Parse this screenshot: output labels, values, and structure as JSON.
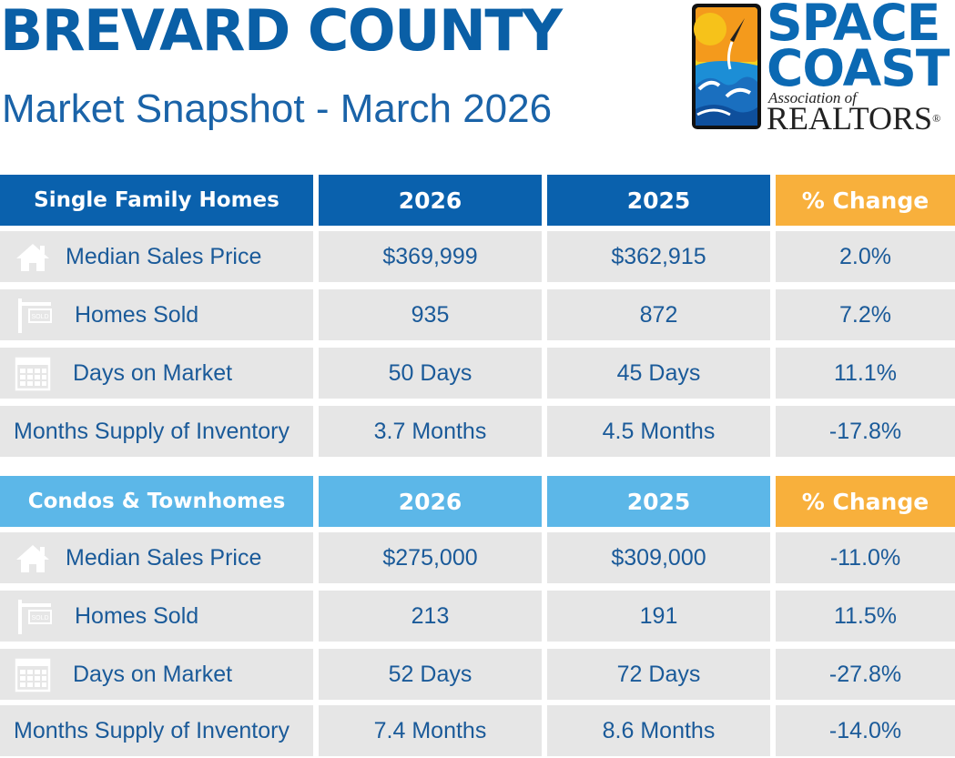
{
  "header": {
    "title": "BREVARD COUNTY",
    "subtitle": "Market Snapshot - March 2026"
  },
  "logo": {
    "line1": "SPACE",
    "line2": "COAST",
    "line3": "Association of",
    "line4": "REALTORS",
    "registered": "®"
  },
  "colors": {
    "brand_blue": "#0a61ad",
    "light_blue": "#5cb7e8",
    "change_orange": "#f8b03c",
    "row_gray": "#e6e6e6",
    "text_blue": "#1a5a99"
  },
  "single_family": {
    "header": [
      "Single Family Homes",
      "2026",
      "2025",
      "% Change"
    ],
    "rows": [
      {
        "label": "Median Sales Price",
        "icon": "house-icon",
        "v2026": "$369,999",
        "v2025": "$362,915",
        "change": "2.0%"
      },
      {
        "label": "Homes Sold",
        "icon": "sold-sign-icon",
        "v2026": "935",
        "v2025": "872",
        "change": "7.2%"
      },
      {
        "label": "Days on Market",
        "icon": "calendar-icon",
        "v2026": "50 Days",
        "v2025": "45 Days",
        "change": "11.1%"
      },
      {
        "label": "Months Supply of Inventory",
        "icon": "",
        "v2026": "3.7 Months",
        "v2025": "4.5 Months",
        "change": "-17.8%"
      }
    ]
  },
  "condos": {
    "header": [
      "Condos & Townhomes",
      "2026",
      "2025",
      "% Change"
    ],
    "rows": [
      {
        "label": "Median Sales Price",
        "icon": "house-icon",
        "v2026": "$275,000",
        "v2025": "$309,000",
        "change": "-11.0%"
      },
      {
        "label": "Homes Sold",
        "icon": "sold-sign-icon",
        "v2026": "213",
        "v2025": "191",
        "change": "11.5%"
      },
      {
        "label": "Days on Market",
        "icon": "calendar-icon",
        "v2026": "52 Days",
        "v2025": "72 Days",
        "change": "-27.8%"
      },
      {
        "label": "Months Supply of Inventory",
        "icon": "",
        "v2026": "7.4 Months",
        "v2025": "8.6 Months",
        "change": "-14.0%"
      }
    ]
  }
}
